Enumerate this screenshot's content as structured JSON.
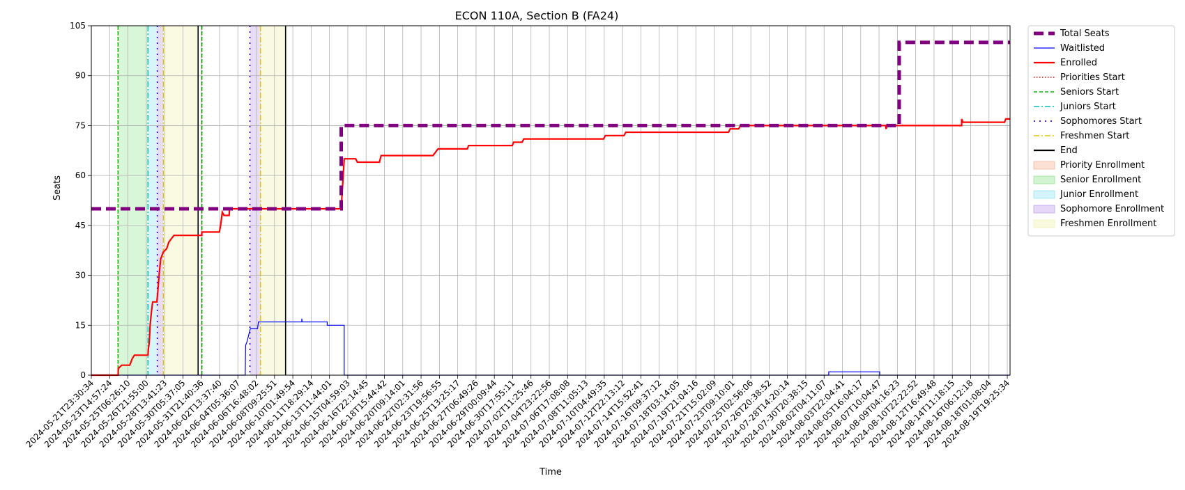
{
  "chart_data": {
    "type": "line",
    "title": "ECON 110A, Section B (FA24)",
    "xlabel": "Time",
    "ylabel": "Seats",
    "ylim": [
      0,
      105
    ],
    "yticks": [
      0,
      15,
      30,
      45,
      60,
      75,
      90,
      105
    ],
    "xlim": [
      "2024-05-21T23:30:34",
      "2024-08-20T03:00:00"
    ],
    "xtick_labels": [
      "2024-05-21T23:30:34",
      "2024-05-23T14:57:24",
      "2024-05-25T06:26:10",
      "2024-05-26T21:55:00",
      "2024-05-28T13:41:23",
      "2024-05-30T05:37:05",
      "2024-05-31T21:40:36",
      "2024-06-02T13:37:40",
      "2024-06-04T05:36:07",
      "2024-06-06T16:48:02",
      "2024-06-08T09:25:51",
      "2024-06-10T01:49:54",
      "2024-06-11T18:29:14",
      "2024-06-13T11:44:01",
      "2024-06-15T04:59:03",
      "2024-06-16T22:14:45",
      "2024-06-18T15:44:42",
      "2024-06-20T09:14:01",
      "2024-06-22T02:31:56",
      "2024-06-23T19:56:55",
      "2024-06-25T13:25:17",
      "2024-06-27T06:49:26",
      "2024-06-29T00:09:44",
      "2024-06-30T17:55:11",
      "2024-07-02T11:25:46",
      "2024-07-04T23:22:56",
      "2024-07-06T17:08:08",
      "2024-07-08T11:05:13",
      "2024-07-10T04:49:35",
      "2024-07-12T22:13:12",
      "2024-07-14T15:52:41",
      "2024-07-16T09:37:12",
      "2024-07-18T03:14:05",
      "2024-07-19T21:04:16",
      "2024-07-21T15:02:09",
      "2024-07-23T09:10:01",
      "2024-07-25T02:56:06",
      "2024-07-26T20:38:52",
      "2024-07-28T14:20:14",
      "2024-07-30T20:38:15",
      "2024-08-02T04:11:07",
      "2024-08-03T22:04:41",
      "2024-08-05T16:04:17",
      "2024-08-07T10:04:47",
      "2024-08-09T04:16:23",
      "2024-08-10T22:22:52",
      "2024-08-12T16:49:48",
      "2024-08-14T11:18:15",
      "2024-08-16T06:12:18",
      "2024-08-18T01:08:04",
      "2024-08-19T19:25:34"
    ],
    "grid": true,
    "legend_position": "outside-right",
    "legend": [
      {
        "label": "Total Seats",
        "kind": "line",
        "color": "#800080",
        "style": "dashed-thick"
      },
      {
        "label": "Waitlisted",
        "kind": "line",
        "color": "#0000ff",
        "style": "solid-thin"
      },
      {
        "label": "Enrolled",
        "kind": "line",
        "color": "#ff0000",
        "style": "solid"
      },
      {
        "label": "Priorities Start",
        "kind": "line",
        "color": "#ff0000",
        "style": "dotted"
      },
      {
        "label": "Seniors Start",
        "kind": "line",
        "color": "#00bb00",
        "style": "dashed"
      },
      {
        "label": "Juniors Start",
        "kind": "line",
        "color": "#00bfbf",
        "style": "dashdot"
      },
      {
        "label": "Sophomores Start",
        "kind": "line",
        "color": "#4400ff",
        "style": "loosedot"
      },
      {
        "label": "Freshmen Start",
        "kind": "line",
        "color": "#e6c800",
        "style": "dashdot"
      },
      {
        "label": "End",
        "kind": "line",
        "color": "#000000",
        "style": "solid"
      },
      {
        "label": "Priority Enrollment",
        "kind": "patch",
        "color": "#f4a582"
      },
      {
        "label": "Senior Enrollment",
        "kind": "patch",
        "color": "#7fe07f"
      },
      {
        "label": "Junior Enrollment",
        "kind": "patch",
        "color": "#7fe0f0"
      },
      {
        "label": "Sophomore Enrollment",
        "kind": "patch",
        "color": "#b48ee6"
      },
      {
        "label": "Freshmen Enrollment",
        "kind": "patch",
        "color": "#f0f0a0"
      }
    ],
    "enrollment_periods": [
      {
        "phase": "Senior",
        "start": "2024-05-24T14:30:00",
        "end": "2024-05-27T13:00:00",
        "color": "#7fe07f"
      },
      {
        "phase": "Junior",
        "start": "2024-05-27T13:00:00",
        "end": "2024-05-28T11:00:00",
        "color": "#7fe0f0"
      },
      {
        "phase": "Sophomore",
        "start": "2024-05-28T11:00:00",
        "end": "2024-05-29T01:00:00",
        "color": "#b48ee6"
      },
      {
        "phase": "Freshmen",
        "start": "2024-05-29T01:00:00",
        "end": "2024-06-01T11:00:00",
        "color": "#f0f0a0"
      },
      {
        "phase": "Sophomore",
        "start": "2024-06-06T13:00:00",
        "end": "2024-06-07T14:00:00",
        "color": "#b48ee6"
      },
      {
        "phase": "Freshmen",
        "start": "2024-06-07T14:00:00",
        "end": "2024-06-10T01:00:00",
        "color": "#f0f0a0"
      }
    ],
    "markers": [
      {
        "label": "Priorities Start",
        "time": "2024-05-24T14:20:00",
        "color": "#ff0000",
        "style": "dotted"
      },
      {
        "label": "Seniors Start",
        "time": "2024-05-24T14:30:00",
        "color": "#00bb00",
        "style": "dashed"
      },
      {
        "label": "Juniors Start",
        "time": "2024-05-27T13:00:00",
        "color": "#00bfbf",
        "style": "dashdot"
      },
      {
        "label": "Sophomores Start",
        "time": "2024-05-28T11:00:00",
        "color": "#4400ff",
        "style": "loosedot"
      },
      {
        "label": "Freshmen Start",
        "time": "2024-05-29T01:00:00",
        "color": "#e6c800",
        "style": "dashdot"
      },
      {
        "label": "End",
        "time": "2024-06-01T11:00:00",
        "color": "#000000",
        "style": "solid"
      },
      {
        "label": "Priorities Start",
        "time": "2024-06-01T19:40:00",
        "color": "#ff0000",
        "style": "dotted"
      },
      {
        "label": "Seniors Start",
        "time": "2024-06-01T19:50:00",
        "color": "#00bb00",
        "style": "dashed"
      },
      {
        "label": "Sophomores Start",
        "time": "2024-06-06T13:00:00",
        "color": "#4400ff",
        "style": "loosedot"
      },
      {
        "label": "Freshmen Start",
        "time": "2024-06-07T14:00:00",
        "color": "#e6c800",
        "style": "dashdot"
      },
      {
        "label": "End",
        "time": "2024-06-10T01:00:00",
        "color": "#000000",
        "style": "solid"
      }
    ],
    "series": [
      {
        "name": "Total Seats",
        "color": "#800080",
        "style": "dashed-thick",
        "points": [
          [
            "2024-05-21T23:30:34",
            50
          ],
          [
            "2024-06-15T12:00:00",
            50
          ],
          [
            "2024-06-15T12:00:00",
            75
          ],
          [
            "2024-08-09T06:00:00",
            75
          ],
          [
            "2024-08-09T06:00:00",
            100
          ],
          [
            "2024-08-20T03:00:00",
            100
          ]
        ]
      },
      {
        "name": "Waitlisted",
        "color": "#0000ff",
        "style": "solid-thin",
        "points": [
          [
            "2024-05-21T23:30:34",
            0
          ],
          [
            "2024-06-06T02:00:00",
            0
          ],
          [
            "2024-06-06T03:00:00",
            9
          ],
          [
            "2024-06-06T06:00:00",
            10
          ],
          [
            "2024-06-06T10:00:00",
            12
          ],
          [
            "2024-06-06T14:00:00",
            14
          ],
          [
            "2024-06-07T07:00:00",
            14
          ],
          [
            "2024-06-07T09:00:00",
            16
          ],
          [
            "2024-06-11T15:00:00",
            16
          ],
          [
            "2024-06-11T15:00:00",
            17
          ],
          [
            "2024-06-11T16:00:00",
            16
          ],
          [
            "2024-06-14T03:00:00",
            16
          ],
          [
            "2024-06-14T03:00:00",
            15
          ],
          [
            "2024-06-15T19:00:00",
            15
          ],
          [
            "2024-06-15T19:00:00",
            0
          ],
          [
            "2024-08-02T08:00:00",
            0
          ],
          [
            "2024-08-02T08:00:00",
            1
          ],
          [
            "2024-08-07T08:00:00",
            1
          ],
          [
            "2024-08-07T08:00:00",
            0
          ],
          [
            "2024-08-20T03:00:00",
            0
          ]
        ]
      },
      {
        "name": "Enrolled",
        "color": "#ff0000",
        "style": "solid",
        "points": [
          [
            "2024-05-21T23:30:34",
            0
          ],
          [
            "2024-05-24T14:40:00",
            0
          ],
          [
            "2024-05-24T15:00:00",
            2
          ],
          [
            "2024-05-24T23:00:00",
            3
          ],
          [
            "2024-05-25T18:00:00",
            3
          ],
          [
            "2024-05-26T00:00:00",
            5
          ],
          [
            "2024-05-26T05:00:00",
            6
          ],
          [
            "2024-05-27T13:00:00",
            6
          ],
          [
            "2024-05-27T14:00:00",
            8
          ],
          [
            "2024-05-27T16:00:00",
            10
          ],
          [
            "2024-05-27T18:00:00",
            15
          ],
          [
            "2024-05-27T21:00:00",
            19
          ],
          [
            "2024-05-28T00:00:00",
            22
          ],
          [
            "2024-05-28T10:00:00",
            22
          ],
          [
            "2024-05-28T12:00:00",
            25
          ],
          [
            "2024-05-28T15:00:00",
            30
          ],
          [
            "2024-05-28T19:00:00",
            35
          ],
          [
            "2024-05-29T01:00:00",
            37
          ],
          [
            "2024-05-29T09:00:00",
            38
          ],
          [
            "2024-05-29T14:00:00",
            40
          ],
          [
            "2024-05-29T20:00:00",
            41
          ],
          [
            "2024-05-30T02:00:00",
            42
          ],
          [
            "2024-06-01T19:50:00",
            42
          ],
          [
            "2024-06-01T19:50:00",
            43
          ],
          [
            "2024-06-03T13:00:00",
            43
          ],
          [
            "2024-06-03T16:00:00",
            45
          ],
          [
            "2024-06-03T20:00:00",
            49
          ],
          [
            "2024-06-04T00:00:00",
            48
          ],
          [
            "2024-06-04T12:00:00",
            48
          ],
          [
            "2024-06-04T13:00:00",
            50
          ],
          [
            "2024-06-15T12:00:00",
            50
          ],
          [
            "2024-06-15T19:00:00",
            65
          ],
          [
            "2024-06-16T22:00:00",
            65
          ],
          [
            "2024-06-17T02:00:00",
            64
          ],
          [
            "2024-06-19T06:00:00",
            64
          ],
          [
            "2024-06-19T10:00:00",
            66
          ],
          [
            "2024-06-24T12:00:00",
            66
          ],
          [
            "2024-06-24T18:00:00",
            67
          ],
          [
            "2024-06-25T00:00:00",
            68
          ],
          [
            "2024-06-27T21:00:00",
            68
          ],
          [
            "2024-06-28T00:00:00",
            69
          ],
          [
            "2024-07-02T07:00:00",
            69
          ],
          [
            "2024-07-02T10:00:00",
            70
          ],
          [
            "2024-07-03T06:00:00",
            70
          ],
          [
            "2024-07-03T10:00:00",
            71
          ],
          [
            "2024-07-11T06:00:00",
            71
          ],
          [
            "2024-07-11T10:00:00",
            72
          ],
          [
            "2024-07-13T06:00:00",
            72
          ],
          [
            "2024-07-13T10:00:00",
            73
          ],
          [
            "2024-07-23T12:00:00",
            73
          ],
          [
            "2024-07-23T16:00:00",
            74
          ],
          [
            "2024-07-24T12:00:00",
            74
          ],
          [
            "2024-07-24T16:00:00",
            75
          ],
          [
            "2024-08-07T22:00:00",
            75
          ],
          [
            "2024-08-07T23:00:00",
            74
          ],
          [
            "2024-08-08T02:00:00",
            75
          ],
          [
            "2024-08-15T09:00:00",
            75
          ],
          [
            "2024-08-15T09:00:00",
            77
          ],
          [
            "2024-08-15T12:00:00",
            76
          ],
          [
            "2024-08-19T14:00:00",
            76
          ],
          [
            "2024-08-19T17:00:00",
            77
          ],
          [
            "2024-08-20T03:00:00",
            77
          ]
        ]
      }
    ]
  }
}
